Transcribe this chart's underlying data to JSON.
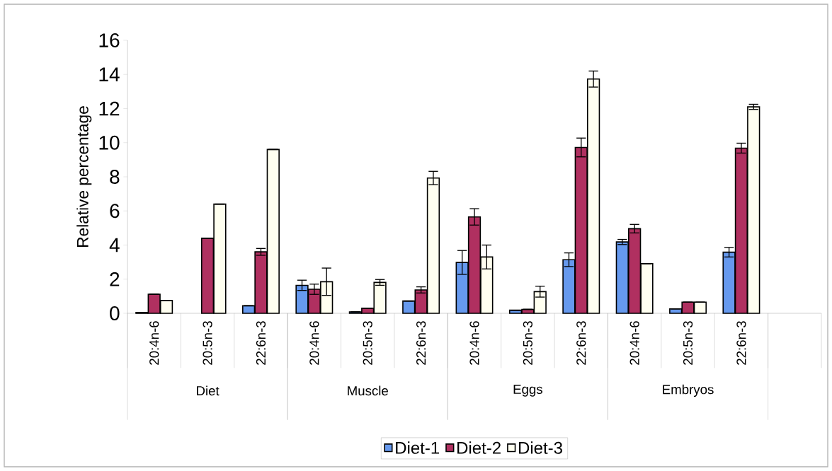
{
  "chart_data": {
    "type": "bar",
    "ylabel": "Relative percentage",
    "categories": [
      "20:4n-6",
      "20:5n-3",
      "22:6n-3",
      "20:4n-6",
      "20:5n-3",
      "22:6n-3",
      "20:4n-6",
      "20:5n-3",
      "22:6n-3",
      "20:4n-6",
      "20:5n-3",
      "22:6n-3",
      null
    ],
    "annotations": [
      "Diet",
      "Muscle",
      "Eggs",
      "Embryos"
    ],
    "series": [
      {
        "name": "Diet-1",
        "color": "#6699ee",
        "values": [
          0.05,
          null,
          0.44,
          1.64,
          0.08,
          0.72,
          2.98,
          0.18,
          3.14,
          4.18,
          0.26,
          3.58,
          null
        ],
        "errors": [
          null,
          null,
          null,
          0.3,
          null,
          null,
          0.7,
          null,
          0.4,
          0.15,
          null,
          0.28,
          null
        ]
      },
      {
        "name": "Diet-2",
        "color": "#b03060",
        "values": [
          1.12,
          4.4,
          3.6,
          1.41,
          0.3,
          1.37,
          5.65,
          0.23,
          9.72,
          4.96,
          0.65,
          9.68,
          null
        ],
        "errors": [
          null,
          null,
          0.2,
          0.3,
          null,
          0.18,
          0.48,
          null,
          0.55,
          0.25,
          null,
          0.29,
          null
        ]
      },
      {
        "name": "Diet-3",
        "color": "#fffff0",
        "values": [
          0.75,
          6.4,
          9.6,
          1.85,
          1.81,
          7.93,
          3.3,
          1.27,
          13.73,
          2.91,
          0.65,
          12.1,
          null
        ],
        "errors": [
          null,
          null,
          null,
          0.8,
          0.17,
          0.39,
          0.7,
          0.32,
          0.47,
          null,
          null,
          0.15,
          null
        ]
      }
    ],
    "ylim": [
      0,
      16
    ],
    "yticks": [
      0,
      2,
      4,
      6,
      8,
      10,
      12,
      14,
      16
    ],
    "legend": "bottom",
    "grid": false
  }
}
